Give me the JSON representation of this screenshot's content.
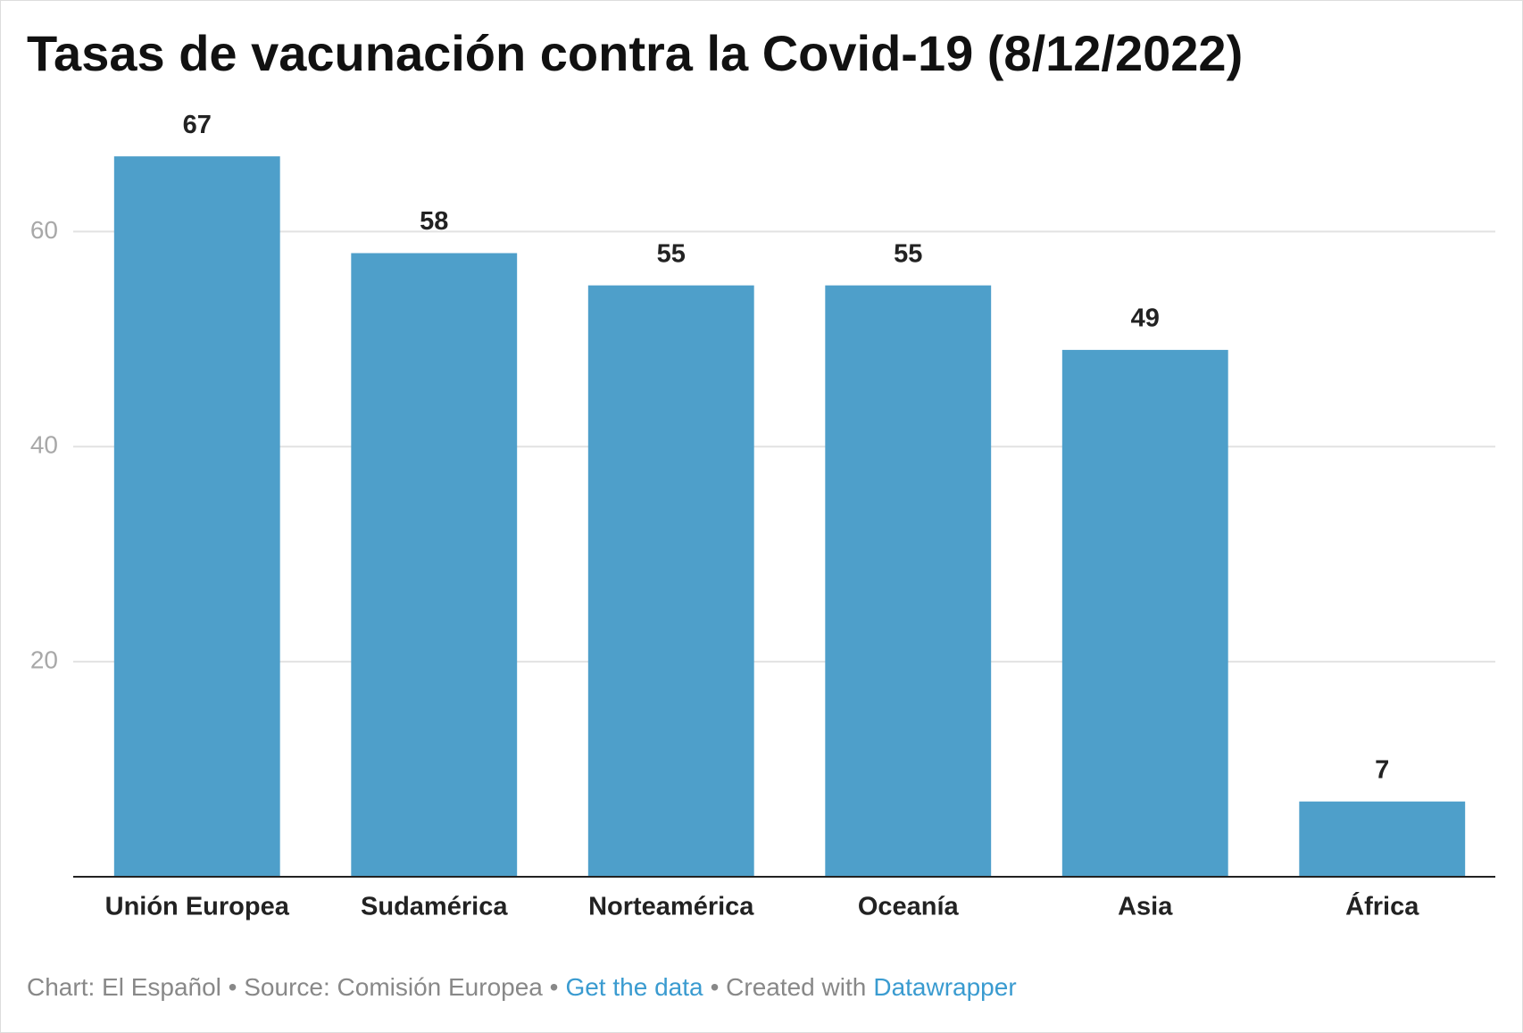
{
  "chart_data": {
    "type": "bar",
    "title": "Tasas de vacunación contra la Covid-19 (8/12/2022)",
    "categories": [
      "Unión Europea",
      "Sudamérica",
      "Norteamérica",
      "Oceanía",
      "Asia",
      "África"
    ],
    "values": [
      67,
      58,
      55,
      55,
      49,
      7
    ],
    "color": "#4e9fca",
    "ylim": [
      0,
      70
    ],
    "yticks": [
      20,
      40,
      60
    ],
    "grid": true,
    "footer": [
      "Chart: El Español • Source: Comisión Europea •",
      "Get the data",
      "• Created with",
      "Datawrapper"
    ]
  }
}
